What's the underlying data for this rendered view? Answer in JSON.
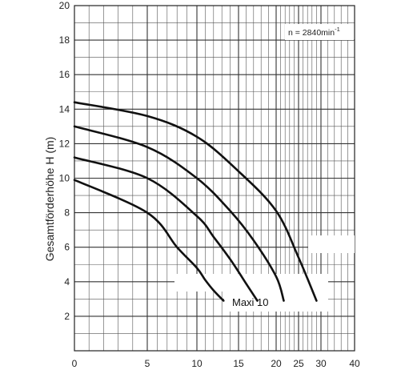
{
  "chart_data": {
    "type": "line",
    "title": "",
    "ylabel": "Gesamtförderhöhe  H (m)",
    "xlabel": "",
    "x_scale": "log-like",
    "x_ticks": [
      0,
      5,
      10,
      15,
      20,
      25,
      30,
      40
    ],
    "y_ticks": [
      2,
      4,
      6,
      8,
      10,
      12,
      14,
      16,
      18,
      20
    ],
    "xlim": [
      0,
      40
    ],
    "ylim": [
      0,
      20
    ],
    "grid": true,
    "annotation": {
      "text": "n = 2840min",
      "superscript": "-1"
    },
    "curve_label": "Maxi 10",
    "series": [
      {
        "x": [
          0,
          5,
          8,
          10,
          11,
          12,
          13.2
        ],
        "y": [
          9.9,
          8.0,
          6.0,
          4.8,
          4.1,
          3.5,
          2.9
        ]
      },
      {
        "x": [
          0,
          5,
          10,
          12,
          14,
          16,
          17.5
        ],
        "y": [
          11.2,
          10.0,
          7.8,
          6.6,
          5.3,
          3.9,
          2.9
        ]
      },
      {
        "x": [
          0,
          5,
          10,
          14,
          17,
          20,
          21.7
        ],
        "y": [
          13.0,
          11.8,
          10.0,
          8.1,
          6.4,
          4.3,
          2.9
        ]
      },
      {
        "x": [
          0,
          5,
          10,
          15,
          20,
          25,
          29
        ],
        "y": [
          14.4,
          13.6,
          12.4,
          10.4,
          8.1,
          5.4,
          2.9
        ]
      }
    ]
  }
}
